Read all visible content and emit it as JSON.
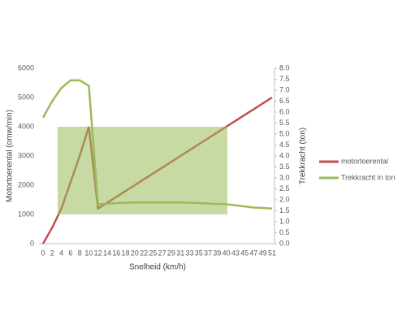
{
  "chart_data": {
    "type": "line",
    "categories": [
      "0",
      "2",
      "4",
      "6",
      "8",
      "10",
      "12",
      "14",
      "16",
      "18",
      "20",
      "22",
      "25",
      "27",
      "29",
      "31",
      "33",
      "35",
      "37",
      "39",
      "40",
      "43",
      "45",
      "47",
      "49",
      "51"
    ],
    "series": [
      {
        "name": "motortoerental",
        "color": "#c0504d",
        "values": [
          0,
          550,
          1200,
          2100,
          3000,
          4000,
          1200,
          1400,
          1600,
          1800,
          2000,
          2200,
          2400,
          2600,
          2800,
          3000,
          3200,
          3400,
          3600,
          3800,
          4000,
          4200,
          4400,
          4600,
          4800,
          5000
        ]
      },
      {
        "name": "Trekkracht in ton",
        "color": "#9bbb59",
        "axis": "y2",
        "values": [
          5.75,
          6.5,
          7.1,
          7.45,
          7.45,
          7.2,
          1.8,
          1.82,
          1.85,
          1.87,
          1.88,
          1.88,
          1.88,
          1.88,
          1.88,
          1.88,
          1.87,
          1.85,
          1.83,
          1.81,
          1.8,
          1.75,
          1.7,
          1.65,
          1.63,
          1.6
        ]
      }
    ],
    "xlabel": "Snelheid (km/h)",
    "ylabel": "Motortoerental (omw/min)",
    "y2label": "Trekkracht (ton)",
    "ylim": [
      0,
      6000
    ],
    "yticks": [
      0,
      1000,
      2000,
      3000,
      4000,
      5000,
      6000
    ],
    "y2lim": [
      0,
      8
    ],
    "y2ticks": [
      {
        "value": 0,
        "label": "0.0"
      },
      0.5,
      {
        "value": 1,
        "label": "1.0"
      },
      1.5,
      {
        "value": 2,
        "label": "2.0"
      },
      2.5,
      {
        "value": 3,
        "label": "3.0"
      },
      3.5,
      {
        "value": 4,
        "label": "4.0"
      },
      4.5,
      {
        "value": 5,
        "label": "5.0"
      },
      5.5,
      {
        "value": 6,
        "label": "6.0"
      },
      6.5,
      {
        "value": 7,
        "label": "7.0"
      },
      7.5,
      {
        "value": 8,
        "label": "8.0"
      }
    ],
    "grid": false,
    "legend": "right"
  }
}
